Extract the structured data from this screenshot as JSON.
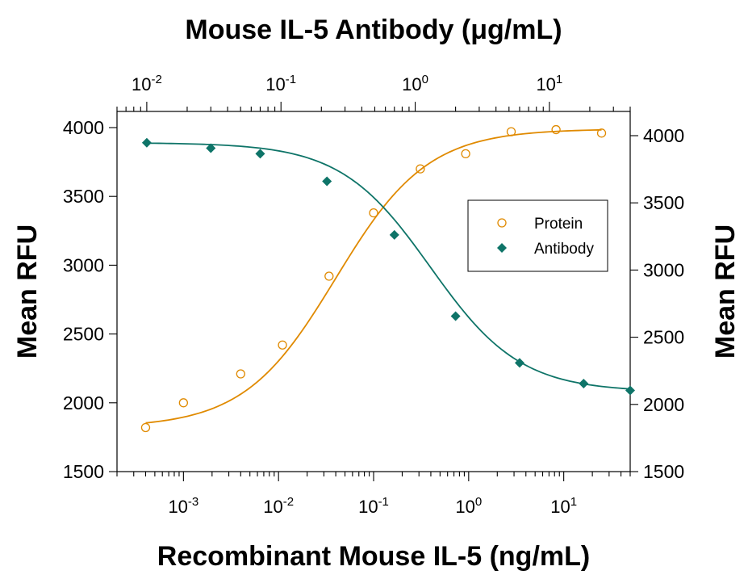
{
  "chart_data": {
    "type": "scatter",
    "title_top": "Mouse IL-5 Antibody (μg/mL)",
    "xlabel_bottom": "Recombinant Mouse IL-5 (ng/mL)",
    "ylabel_left": "Mean RFU",
    "ylabel_right": "Mean RFU",
    "x_bottom_scale": "log",
    "x_bottom_range": [
      0.0002,
      50
    ],
    "x_bottom_ticks": [
      {
        "value": 0.001,
        "base": "10",
        "exp": "-3"
      },
      {
        "value": 0.01,
        "base": "10",
        "exp": "-2"
      },
      {
        "value": 0.1,
        "base": "10",
        "exp": "-1"
      },
      {
        "value": 1,
        "base": "10",
        "exp": "0"
      },
      {
        "value": 10,
        "base": "10",
        "exp": "1"
      }
    ],
    "x_top_scale": "log",
    "x_top_range": [
      0.006,
      40
    ],
    "x_top_ticks": [
      {
        "value": 0.01,
        "base": "10",
        "exp": "-2"
      },
      {
        "value": 0.1,
        "base": "10",
        "exp": "-1"
      },
      {
        "value": 1,
        "base": "10",
        "exp": "0"
      },
      {
        "value": 10,
        "base": "10",
        "exp": "1"
      }
    ],
    "y_left_range": [
      1500,
      4000
    ],
    "y_left_ticks": [
      "1500",
      "2000",
      "2500",
      "3000",
      "3500",
      "4000"
    ],
    "y_right_range": [
      1500,
      4000
    ],
    "y_right_ticks": [
      "1500",
      "2000",
      "2500",
      "3000",
      "3500",
      "4000"
    ],
    "grid": false,
    "legend_position": "right",
    "series": [
      {
        "name": "Protein",
        "axis": "bottom",
        "color": "#E08A00",
        "marker": "open-circle",
        "points": [
          {
            "x": 0.0004,
            "y": 1820
          },
          {
            "x": 0.001,
            "y": 2000
          },
          {
            "x": 0.004,
            "y": 2210
          },
          {
            "x": 0.011,
            "y": 2420
          },
          {
            "x": 0.034,
            "y": 2920
          },
          {
            "x": 0.1,
            "y": 3380
          },
          {
            "x": 0.31,
            "y": 3700
          },
          {
            "x": 0.93,
            "y": 3810
          },
          {
            "x": 2.8,
            "y": 3970
          },
          {
            "x": 8.3,
            "y": 3985
          },
          {
            "x": 25,
            "y": 3960
          }
        ],
        "fit": {
          "bottom": 1820,
          "top": 3990,
          "ec50": 0.04,
          "hill": 0.9
        }
      },
      {
        "name": "Antibody",
        "axis": "top",
        "color": "#0E7468",
        "marker": "filled-diamond",
        "points": [
          {
            "x": 0.01,
            "y": 3890
          },
          {
            "x": 0.03,
            "y": 3850
          },
          {
            "x": 0.07,
            "y": 3810
          },
          {
            "x": 0.22,
            "y": 3610
          },
          {
            "x": 0.7,
            "y": 3220
          },
          {
            "x": 2,
            "y": 2630
          },
          {
            "x": 6,
            "y": 2290
          },
          {
            "x": 18,
            "y": 2140
          },
          {
            "x": 40,
            "y": 2090
          }
        ],
        "fit": {
          "bottom": 2080,
          "top": 3890,
          "ec50": 1.3,
          "hill": -1.3
        }
      }
    ]
  }
}
